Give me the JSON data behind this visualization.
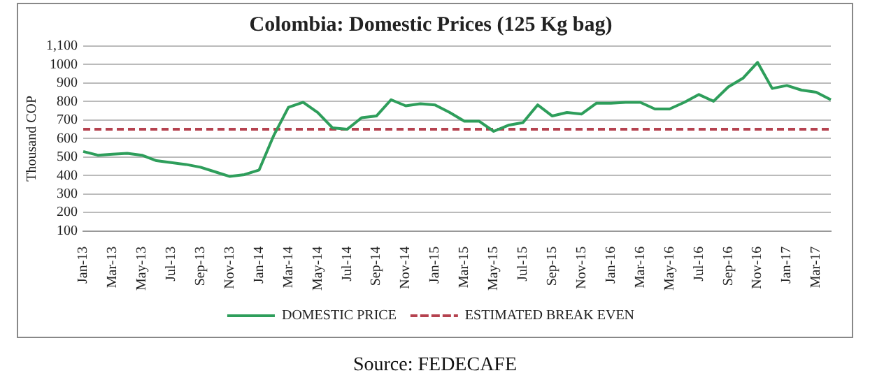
{
  "chart_data": {
    "type": "line",
    "title": "Colombia: Domestic Prices (125 Kg bag)",
    "ylabel": "Thousand COP",
    "categories": [
      "Jan-13",
      null,
      "Mar-13",
      null,
      "May-13",
      null,
      "Jul-13",
      null,
      "Sep-13",
      null,
      "Nov-13",
      null,
      "Jan-14",
      null,
      "Mar-14",
      null,
      "May-14",
      null,
      "Jul-14",
      null,
      "Sep-14",
      null,
      "Nov-14",
      null,
      "Jan-15",
      null,
      "Mar-15",
      null,
      "May-15",
      null,
      "Jul-15",
      null,
      "Sep-15",
      null,
      "Nov-15",
      null,
      "Jan-16",
      null,
      "Mar-16",
      null,
      "May-16",
      null,
      "Jul-16",
      null,
      "Sep-16",
      null,
      "Nov-16",
      null,
      "Jan-17",
      null,
      "Mar-17",
      null
    ],
    "series": [
      {
        "name": "DOMESTIC PRICE",
        "color": "#2e9e5b",
        "line_style": "solid",
        "values": [
          530,
          510,
          515,
          520,
          510,
          480,
          470,
          460,
          445,
          420,
          395,
          405,
          430,
          617,
          769,
          796,
          741,
          658,
          650,
          713,
          722,
          810,
          777,
          788,
          782,
          741,
          694,
          694,
          639,
          672,
          686,
          782,
          722,
          741,
          733,
          791,
          791,
          796,
          796,
          760,
          760,
          796,
          838,
          802,
          879,
          926,
          1012,
          871,
          887,
          862,
          851,
          810
        ]
      },
      {
        "name": "ESTIMATED BREAK EVEN",
        "color": "#b5424f",
        "line_style": "dashed",
        "values": [
          650,
          650,
          650,
          650,
          650,
          650,
          650,
          650,
          650,
          650,
          650,
          650,
          650,
          650,
          650,
          650,
          650,
          650,
          650,
          650,
          650,
          650,
          650,
          650,
          650,
          650,
          650,
          650,
          650,
          650,
          650,
          650,
          650,
          650,
          650,
          650,
          650,
          650,
          650,
          650,
          650,
          650,
          650,
          650,
          650,
          650,
          650,
          650,
          650,
          650,
          650,
          650
        ]
      }
    ],
    "ylim": [
      100,
      1100
    ],
    "yticks": [
      100,
      200,
      300,
      400,
      500,
      600,
      700,
      800,
      900,
      1000,
      {
        "value": 1100,
        "label": "1,100"
      }
    ],
    "grid": "y",
    "legend": "bottom",
    "marker": "none",
    "annotations": [
      "Source: FEDECAFE"
    ]
  }
}
